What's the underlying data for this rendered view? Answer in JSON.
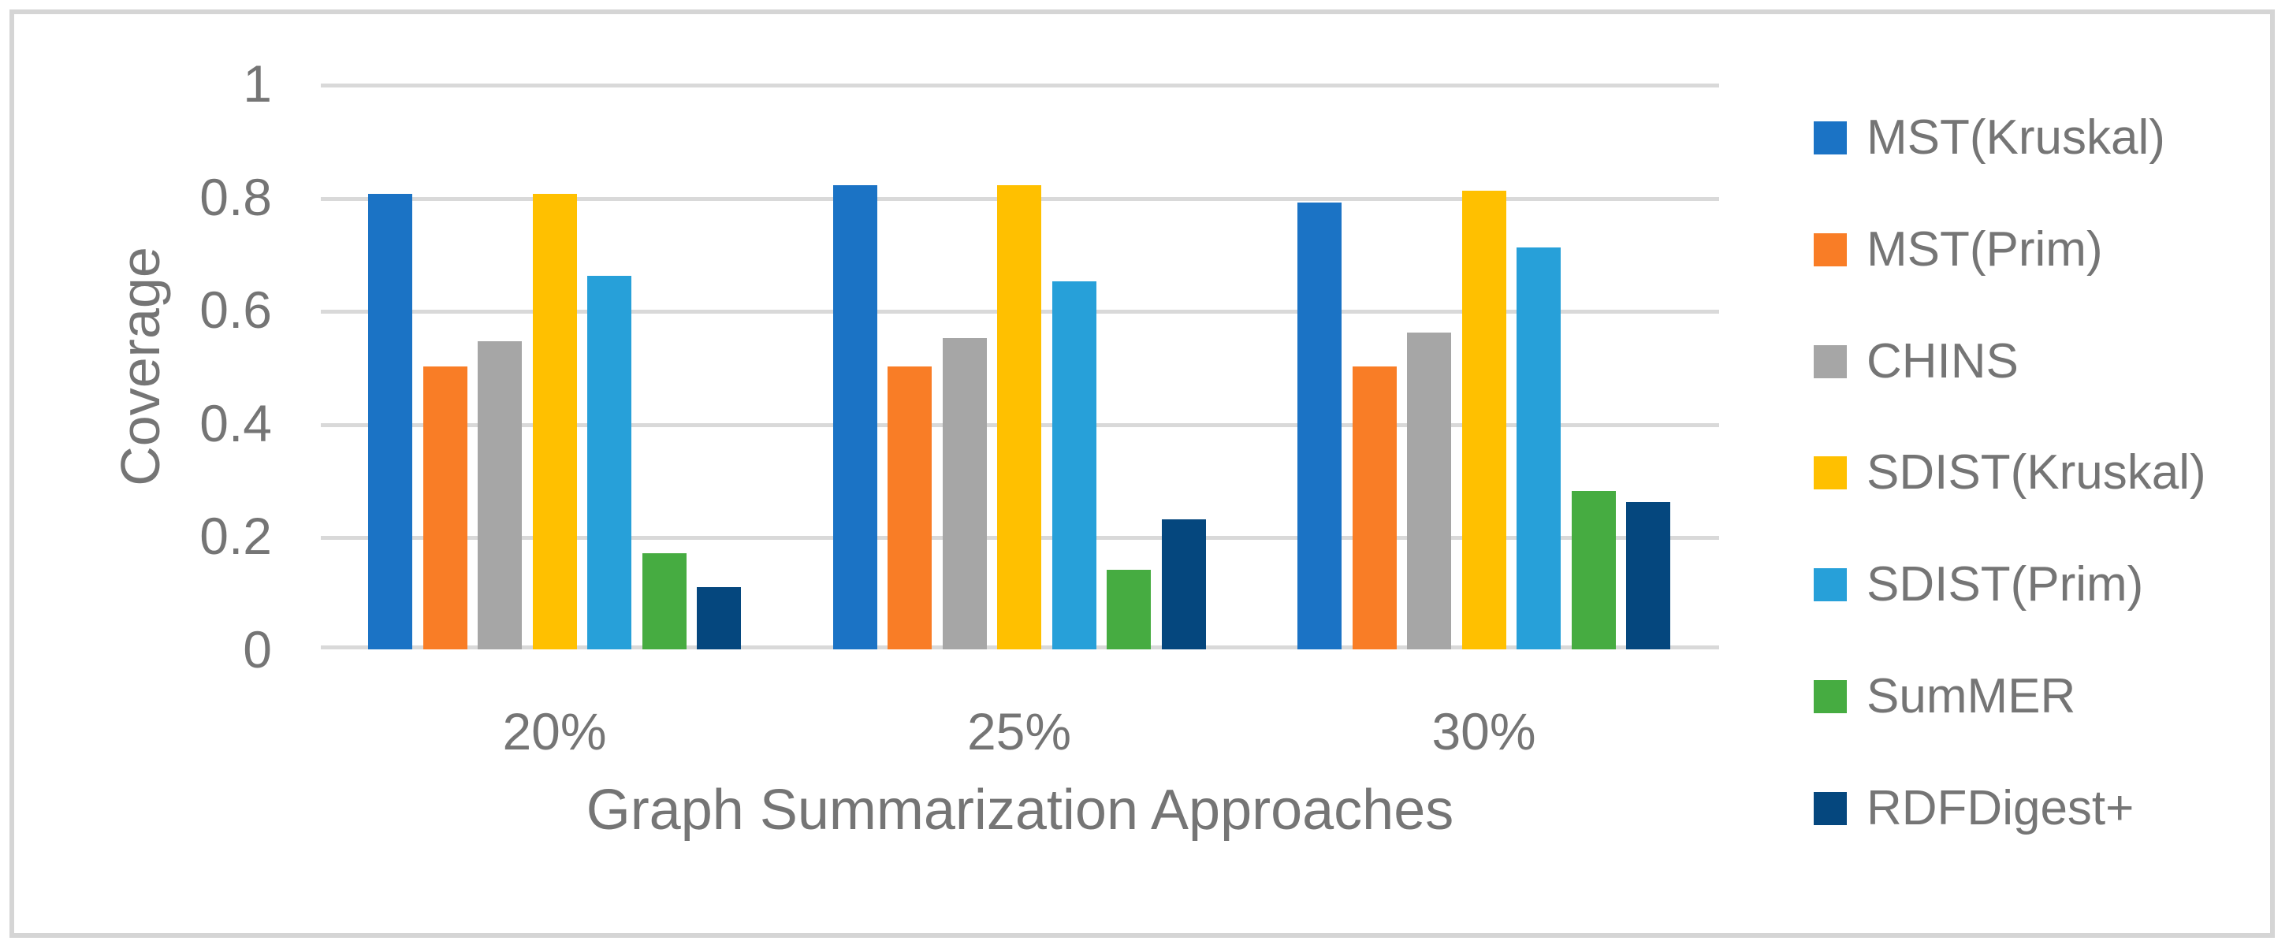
{
  "chart_data": {
    "type": "bar",
    "title": "",
    "xlabel": "Graph Summarization Approaches",
    "ylabel": "Coverage",
    "categories": [
      "20%",
      "25%",
      "30%"
    ],
    "series": [
      {
        "name": "MST(Kruskal)",
        "color": "#1B73C5",
        "values": [
          0.805,
          0.82,
          0.79
        ]
      },
      {
        "name": "MST(Prim)",
        "color": "#F97D26",
        "values": [
          0.5,
          0.5,
          0.5
        ]
      },
      {
        "name": "CHINS",
        "color": "#A6A6A6",
        "values": [
          0.545,
          0.55,
          0.56
        ]
      },
      {
        "name": "SDIST(Kruskal)",
        "color": "#FFC000",
        "values": [
          0.805,
          0.82,
          0.81
        ]
      },
      {
        "name": "SDIST(Prim)",
        "color": "#27A0D9",
        "values": [
          0.66,
          0.65,
          0.71
        ]
      },
      {
        "name": "SumMER",
        "color": "#46AC41",
        "values": [
          0.17,
          0.14,
          0.28
        ]
      },
      {
        "name": "RDFDigest+",
        "color": "#05477E",
        "values": [
          0.11,
          0.23,
          0.26
        ]
      }
    ],
    "ylim": [
      0,
      1
    ],
    "yticks": [
      0,
      0.2,
      0.4,
      0.6,
      0.8,
      1
    ],
    "ytick_labels": [
      "0",
      "0.2",
      "0.4",
      "0.6",
      "0.8",
      "1"
    ],
    "grid": true,
    "legend_position": "right",
    "colors": {
      "grid": "#D9D9D9",
      "text": "#757575",
      "frame_border": "#D5D5D5",
      "background": "#FFFFFF"
    }
  }
}
